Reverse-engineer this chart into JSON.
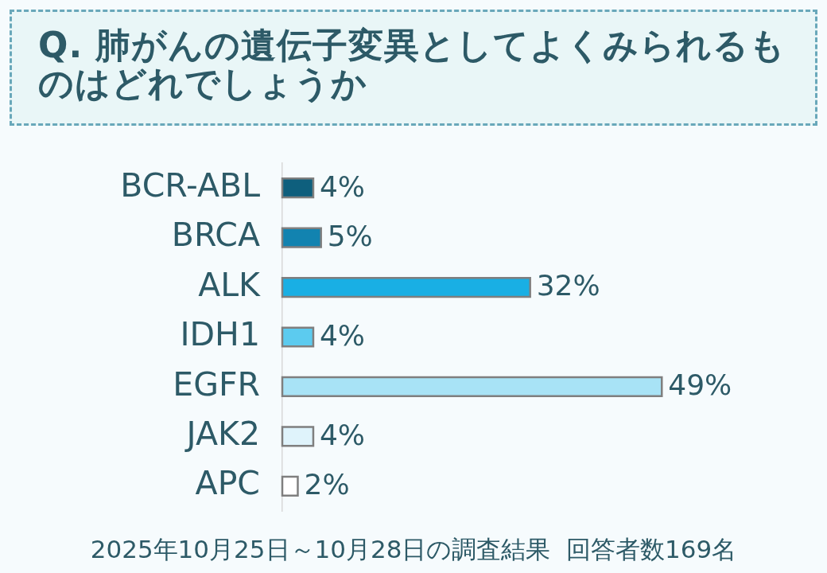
{
  "chart_data": {
    "type": "bar",
    "orientation": "horizontal",
    "title": "Q. 肺がんの遺伝子変異としてよくみられるものはどれでしょうか",
    "categories": [
      "BCR-ABL",
      "BRCA",
      "ALK",
      "IDH1",
      "EGFR",
      "JAK2",
      "APC"
    ],
    "values": [
      4,
      5,
      32,
      4,
      49,
      4,
      2
    ],
    "colors": [
      "#0e5f7d",
      "#1283b0",
      "#19afe4",
      "#5ccbef",
      "#a8e3f6",
      "#dff3fb",
      "#ffffff"
    ],
    "value_labels": [
      "4%",
      "5%",
      "32%",
      "4%",
      "49%",
      "4%",
      "2%"
    ],
    "tick_labels": "y",
    "annotations": [
      "2025年10月25日～10月28日の調査結果  回答者数169名"
    ]
  }
}
